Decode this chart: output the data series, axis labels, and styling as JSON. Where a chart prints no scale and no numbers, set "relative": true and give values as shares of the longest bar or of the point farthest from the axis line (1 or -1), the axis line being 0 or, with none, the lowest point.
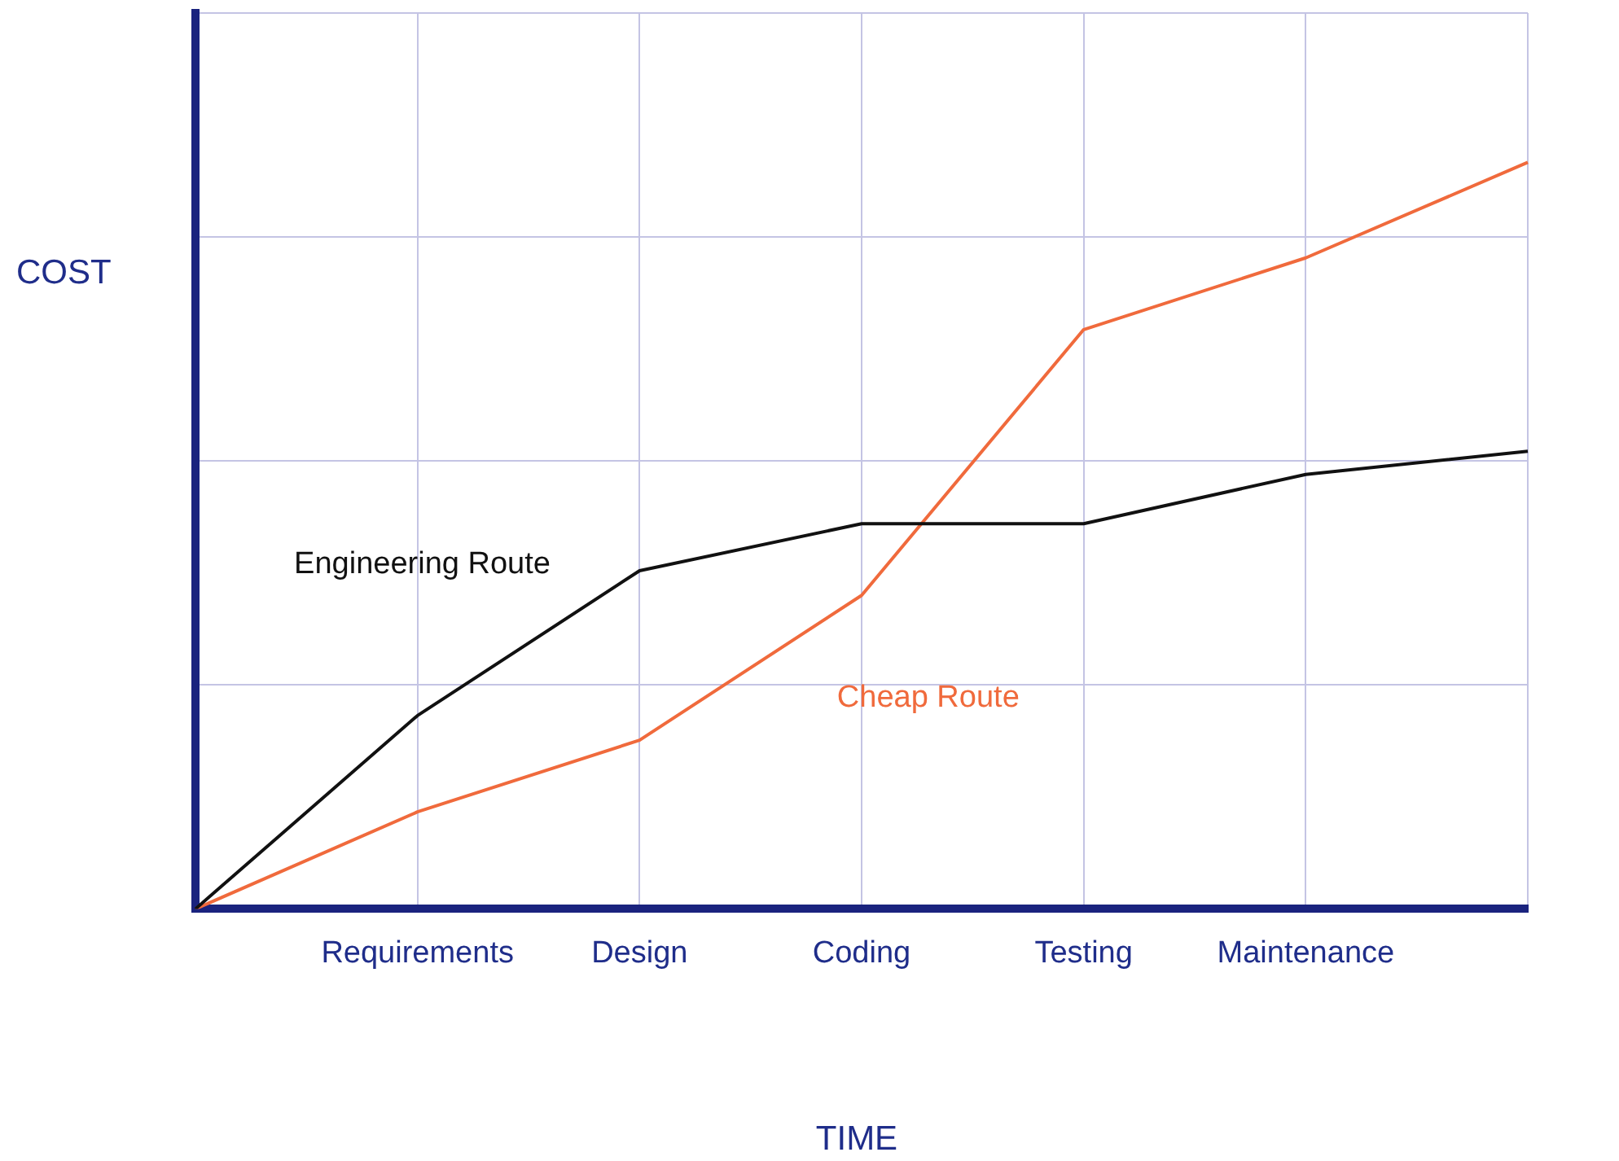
{
  "chart_data": {
    "type": "line",
    "xlabel": "TIME",
    "ylabel": "COST",
    "categories": [
      null,
      "Requirements",
      "Design",
      "Coding",
      "Testing",
      "Maintenance",
      null
    ],
    "relative": true,
    "grid": true,
    "legend": false,
    "marker": "none",
    "line_style": "solid",
    "series": [
      {
        "name": "Engineering Route",
        "color": "#111111",
        "values": [
          0,
          0.259,
          0.453,
          0.516,
          0.516,
          0.582,
          0.613
        ]
      },
      {
        "name": "Cheap Route",
        "color": "#f06a3c",
        "values": [
          0,
          0.13,
          0.226,
          0.42,
          0.776,
          0.872,
          1
        ]
      }
    ]
  }
}
